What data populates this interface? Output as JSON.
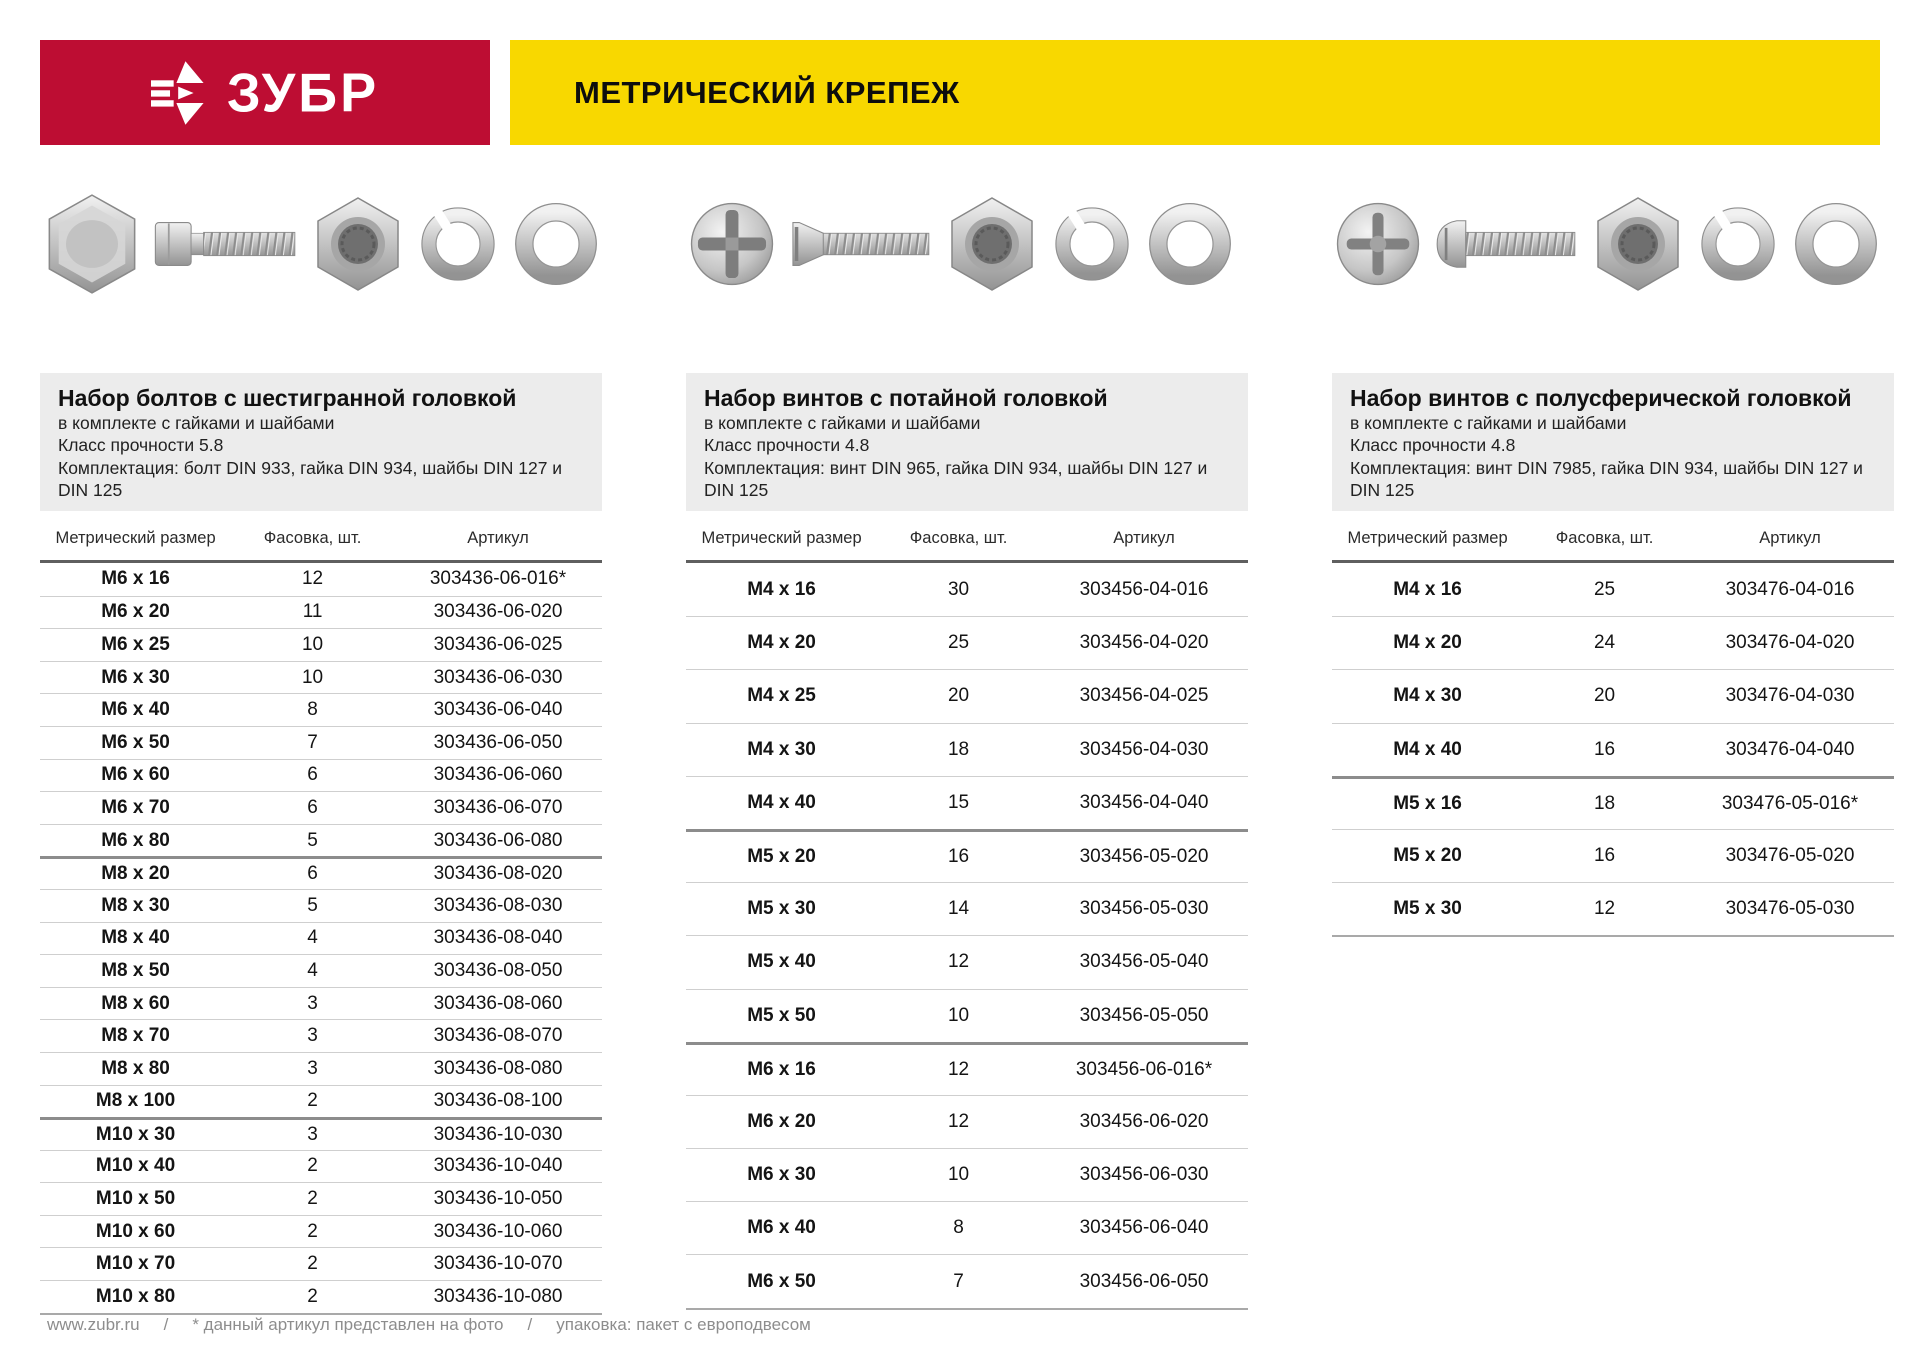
{
  "header": {
    "brand": "ЗУБР",
    "title": "МЕТРИЧЕСКИЙ КРЕПЕЖ"
  },
  "table_headers": {
    "size": "Метрический размер",
    "qty": "Фасовка, шт.",
    "sku": "Артикул"
  },
  "products": [
    {
      "title": "Набор болтов с шестигранной головкой",
      "subtitle": "в комплекте с гайками и шайбами",
      "strength": "Класс прочности 5.8",
      "contents": "Комплектация: болт DIN 933, гайка DIN 934, шайбы DIN 127 и DIN 125",
      "icons": [
        "hex-bolt-head-top-icon",
        "hex-bolt-side-icon",
        "hex-nut-icon",
        "spring-washer-icon",
        "flat-washer-icon"
      ],
      "rows": [
        {
          "size": "М6 х 16",
          "qty": "12",
          "sku": "303436-06-016*"
        },
        {
          "size": "М6 х 20",
          "qty": "11",
          "sku": "303436-06-020"
        },
        {
          "size": "М6 х 25",
          "qty": "10",
          "sku": "303436-06-025"
        },
        {
          "size": "М6 х 30",
          "qty": "10",
          "sku": "303436-06-030"
        },
        {
          "size": "М6 х 40",
          "qty": "8",
          "sku": "303436-06-040"
        },
        {
          "size": "М6 х 50",
          "qty": "7",
          "sku": "303436-06-050"
        },
        {
          "size": "М6 х 60",
          "qty": "6",
          "sku": "303436-06-060"
        },
        {
          "size": "М6 х 70",
          "qty": "6",
          "sku": "303436-06-070"
        },
        {
          "size": "М6 х 80",
          "qty": "5",
          "sku": "303436-06-080"
        },
        {
          "size": "М8 х 20",
          "qty": "6",
          "sku": "303436-08-020"
        },
        {
          "size": "М8 х 30",
          "qty": "5",
          "sku": "303436-08-030"
        },
        {
          "size": "М8 х 40",
          "qty": "4",
          "sku": "303436-08-040"
        },
        {
          "size": "М8 х 50",
          "qty": "4",
          "sku": "303436-08-050"
        },
        {
          "size": "М8 х 60",
          "qty": "3",
          "sku": "303436-08-060"
        },
        {
          "size": "М8 х 70",
          "qty": "3",
          "sku": "303436-08-070"
        },
        {
          "size": "М8 х 80",
          "qty": "3",
          "sku": "303436-08-080"
        },
        {
          "size": "М8 х 100",
          "qty": "2",
          "sku": "303436-08-100"
        },
        {
          "size": "М10 х 30",
          "qty": "3",
          "sku": "303436-10-030"
        },
        {
          "size": "М10 х 40",
          "qty": "2",
          "sku": "303436-10-040"
        },
        {
          "size": "М10 х 50",
          "qty": "2",
          "sku": "303436-10-050"
        },
        {
          "size": "М10 х 60",
          "qty": "2",
          "sku": "303436-10-060"
        },
        {
          "size": "М10 х 70",
          "qty": "2",
          "sku": "303436-10-070"
        },
        {
          "size": "М10 х 80",
          "qty": "2",
          "sku": "303436-10-080"
        }
      ]
    },
    {
      "title": "Набор винтов с потайной головкой",
      "subtitle": "в комплекте с гайками и шайбами",
      "strength": "Класс прочности 4.8",
      "contents": "Комплектация: винт DIN 965, гайка DIN 934, шайбы DIN 127 и DIN 125",
      "icons": [
        "flat-screw-head-top-icon",
        "flat-screw-side-icon",
        "hex-nut-icon",
        "spring-washer-icon",
        "flat-washer-icon"
      ],
      "rows": [
        {
          "size": "М4 х 16",
          "qty": "30",
          "sku": "303456-04-016"
        },
        {
          "size": "М4 х 20",
          "qty": "25",
          "sku": "303456-04-020"
        },
        {
          "size": "М4 х 25",
          "qty": "20",
          "sku": "303456-04-025"
        },
        {
          "size": "М4 х 30",
          "qty": "18",
          "sku": "303456-04-030"
        },
        {
          "size": "М4 х 40",
          "qty": "15",
          "sku": "303456-04-040"
        },
        {
          "size": "М5 х 20",
          "qty": "16",
          "sku": "303456-05-020"
        },
        {
          "size": "М5 х 30",
          "qty": "14",
          "sku": "303456-05-030"
        },
        {
          "size": "М5 х 40",
          "qty": "12",
          "sku": "303456-05-040"
        },
        {
          "size": "М5 х 50",
          "qty": "10",
          "sku": "303456-05-050"
        },
        {
          "size": "М6 х 16",
          "qty": "12",
          "sku": "303456-06-016*"
        },
        {
          "size": "М6 х 20",
          "qty": "12",
          "sku": "303456-06-020"
        },
        {
          "size": "М6 х 30",
          "qty": "10",
          "sku": "303456-06-030"
        },
        {
          "size": "М6 х 40",
          "qty": "8",
          "sku": "303456-06-040"
        },
        {
          "size": "М6 х 50",
          "qty": "7",
          "sku": "303456-06-050"
        }
      ]
    },
    {
      "title": "Набор винтов с полусферической головкой",
      "subtitle": "в комплекте с гайками и шайбами",
      "strength": "Класс прочности 4.8",
      "contents": "Комплектация: винт DIN 7985, гайка DIN 934, шайбы DIN 127 и DIN 125",
      "icons": [
        "pan-screw-head-top-icon",
        "pan-screw-side-icon",
        "hex-nut-icon",
        "spring-washer-icon",
        "flat-washer-icon"
      ],
      "rows": [
        {
          "size": "М4 х 16",
          "qty": "25",
          "sku": "303476-04-016"
        },
        {
          "size": "М4 х 20",
          "qty": "24",
          "sku": "303476-04-020"
        },
        {
          "size": "М4 х 30",
          "qty": "20",
          "sku": "303476-04-030"
        },
        {
          "size": "М4 х 40",
          "qty": "16",
          "sku": "303476-04-040"
        },
        {
          "size": "М5 х 16",
          "qty": "18",
          "sku": "303476-05-016*"
        },
        {
          "size": "М5 х 20",
          "qty": "16",
          "sku": "303476-05-020"
        },
        {
          "size": "М5 х 30",
          "qty": "12",
          "sku": "303476-05-030"
        }
      ]
    }
  ],
  "footer": {
    "site": "www.zubr.ru",
    "sep": "/",
    "note": "* данный артикул представлен на фото",
    "packaging": "упаковка: пакет с европодвесом"
  },
  "colors": {
    "brand_red": "#bd0d33",
    "brand_yellow": "#f8d800",
    "info_bg": "#ececec"
  }
}
